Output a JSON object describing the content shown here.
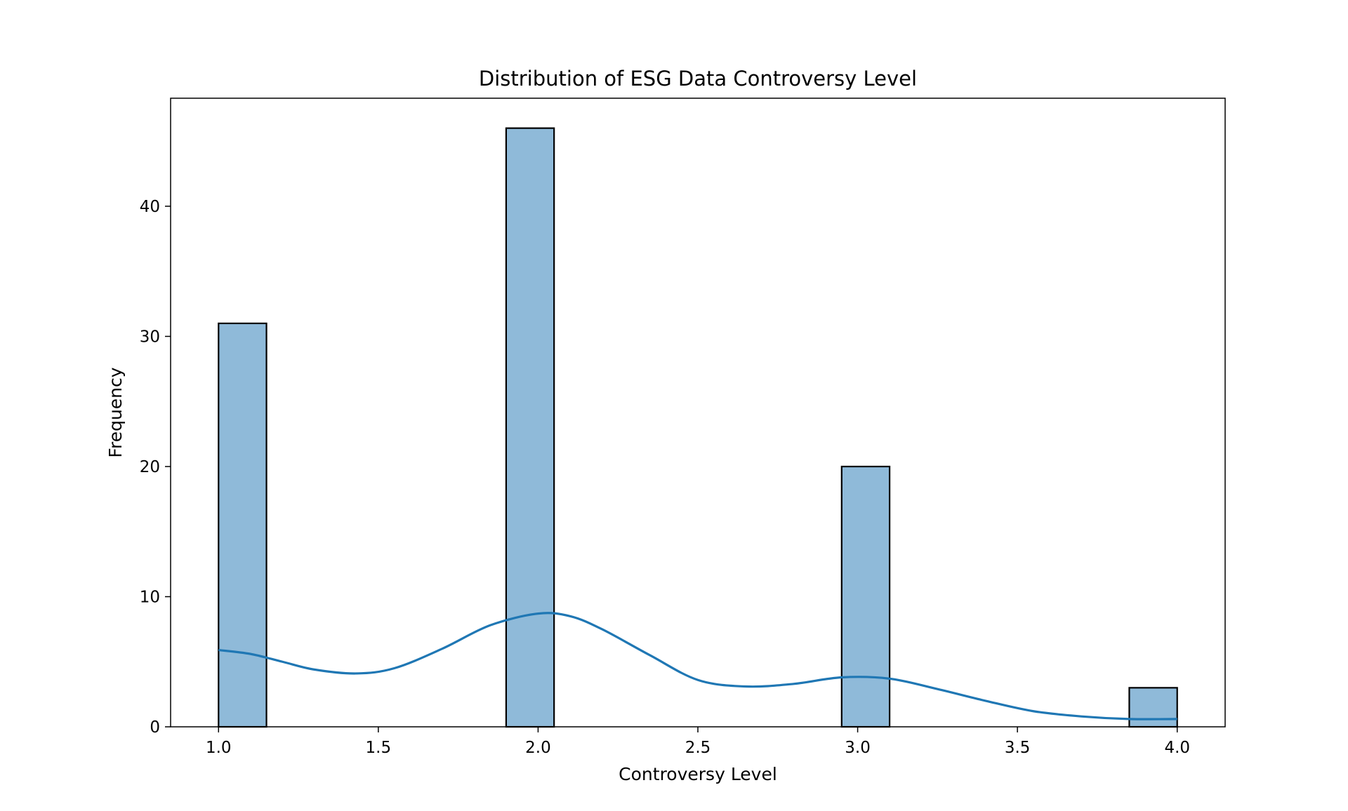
{
  "chart_data": {
    "type": "bar",
    "title": "Distribution of ESG Data Controversy Level",
    "xlabel": "Controversy Level",
    "ylabel": "Frequency",
    "xlim": [
      0.85,
      4.15
    ],
    "ylim": [
      0,
      48.3
    ],
    "x_ticks": [
      1.0,
      1.5,
      2.0,
      2.5,
      3.0,
      3.5,
      4.0
    ],
    "x_tick_labels": [
      "1.0",
      "1.5",
      "2.0",
      "2.5",
      "3.0",
      "3.5",
      "4.0"
    ],
    "y_ticks": [
      0,
      10,
      20,
      30,
      40
    ],
    "y_tick_labels": [
      "0",
      "10",
      "20",
      "30",
      "40"
    ],
    "bin_width": 0.15,
    "bars": [
      {
        "x_start": 1.0,
        "x_end": 1.15,
        "value": 31
      },
      {
        "x_start": 1.9,
        "x_end": 2.05,
        "value": 46
      },
      {
        "x_start": 2.95,
        "x_end": 3.1,
        "value": 20
      },
      {
        "x_start": 3.85,
        "x_end": 4.0,
        "value": 3
      }
    ],
    "kde": {
      "x": [
        1.0,
        1.1,
        1.2,
        1.3,
        1.43,
        1.55,
        1.7,
        1.85,
        2.0,
        2.1,
        2.2,
        2.35,
        2.5,
        2.65,
        2.8,
        2.95,
        3.1,
        3.25,
        3.4,
        3.55,
        3.7,
        3.85,
        4.0
      ],
      "y": [
        5.9,
        5.6,
        5.0,
        4.4,
        4.1,
        4.5,
        6.0,
        7.8,
        8.7,
        8.5,
        7.5,
        5.5,
        3.6,
        3.1,
        3.3,
        3.8,
        3.7,
        2.9,
        2.0,
        1.2,
        0.8,
        0.6,
        0.6
      ]
    },
    "grid": false,
    "legend": "none",
    "colors": {
      "bar_fill": "#8fbad9",
      "bar_edge": "#000000",
      "kde_line": "#1f77b4"
    }
  }
}
